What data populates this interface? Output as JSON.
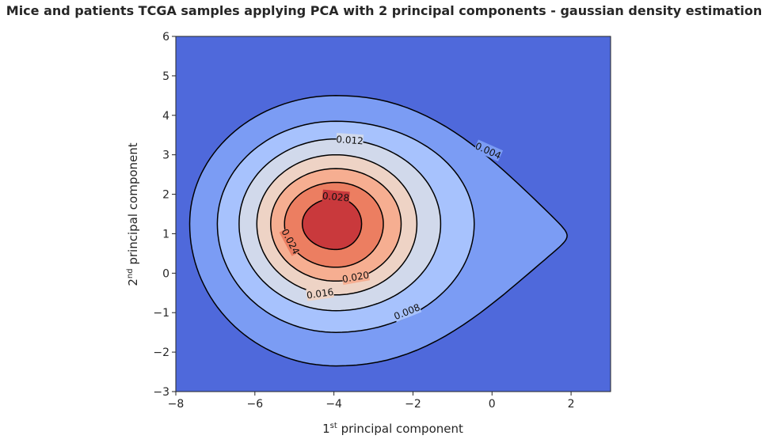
{
  "chart_data": {
    "type": "contour",
    "title": "Mice and patients TCGA samples applying PCA with 2 principal components - gaussian density estimation",
    "xlabel": {
      "prefix": "1",
      "sup": "st",
      "text": " principal component"
    },
    "ylabel": {
      "prefix": "2",
      "sup": "nd",
      "text": " principal component"
    },
    "xlim": [
      -8,
      3
    ],
    "ylim": [
      -3,
      6
    ],
    "x_ticks": [
      {
        "value": -8,
        "label": "−8"
      },
      {
        "value": -6,
        "label": "−6"
      },
      {
        "value": -4,
        "label": "−4"
      },
      {
        "value": -2,
        "label": "−2"
      },
      {
        "value": 0,
        "label": "0"
      },
      {
        "value": 2,
        "label": "2"
      }
    ],
    "y_ticks": [
      {
        "value": -3,
        "label": "−3"
      },
      {
        "value": -2,
        "label": "−2"
      },
      {
        "value": -1,
        "label": "−1"
      },
      {
        "value": 0,
        "label": "0"
      },
      {
        "value": 1,
        "label": "1"
      },
      {
        "value": 2,
        "label": "2"
      },
      {
        "value": 3,
        "label": "3"
      },
      {
        "value": 4,
        "label": "4"
      },
      {
        "value": 5,
        "label": "5"
      },
      {
        "value": 6,
        "label": "6"
      }
    ],
    "grid": false,
    "colormap": "coolwarm",
    "background_color": "#4f69db",
    "center": [
      -3.95,
      1.25
    ],
    "levels": [
      {
        "value": 0.004,
        "color": "#7b9cf4",
        "shape": "drop",
        "extent": {
          "left": -7.65,
          "right": 1.9,
          "top": 4.5,
          "bottom": -2.35,
          "peak_y": 0.95
        },
        "label": "0.004",
        "label_at": [
          -0.1,
          3.1
        ],
        "label_angle": 24
      },
      {
        "value": 0.008,
        "color": "#a7c2fd",
        "shape": "ellipse",
        "extent": {
          "left": -6.95,
          "right": -0.45,
          "top": 3.85,
          "bottom": -1.5
        },
        "label": "0.008",
        "label_at": [
          -2.15,
          -0.98
        ],
        "label_angle": -22
      },
      {
        "value": 0.012,
        "color": "#d1d9eb",
        "shape": "ellipse",
        "extent": {
          "left": -6.4,
          "right": -1.3,
          "top": 3.4,
          "bottom": -0.95
        },
        "label": "0.012",
        "label_at": [
          -3.6,
          3.37
        ],
        "label_angle": 4
      },
      {
        "value": 0.016,
        "color": "#eed3c5",
        "shape": "ellipse",
        "extent": {
          "left": -5.95,
          "right": -1.9,
          "top": 3.0,
          "bottom": -0.55
        },
        "label": "0.016",
        "label_at": [
          -4.35,
          -0.52
        ],
        "label_angle": -8
      },
      {
        "value": 0.02,
        "color": "#f6ae91",
        "shape": "ellipse",
        "extent": {
          "left": -5.6,
          "right": -2.3,
          "top": 2.65,
          "bottom": -0.2
        },
        "label": "0.020",
        "label_at": [
          -3.45,
          -0.1
        ],
        "label_angle": -10
      },
      {
        "value": 0.024,
        "color": "#ec7e61",
        "shape": "ellipse",
        "extent": {
          "left": -5.25,
          "right": -2.75,
          "top": 2.3,
          "bottom": 0.15
        },
        "label": "0.024",
        "label_at": [
          -5.1,
          0.8
        ],
        "label_angle": 62
      },
      {
        "value": 0.028,
        "color": "#c9393c",
        "shape": "ellipse",
        "extent": {
          "left": -4.8,
          "right": -3.3,
          "top": 1.9,
          "bottom": 0.6
        },
        "label": "0.028",
        "label_at": [
          -3.95,
          1.93
        ],
        "label_angle": 5
      }
    ]
  }
}
